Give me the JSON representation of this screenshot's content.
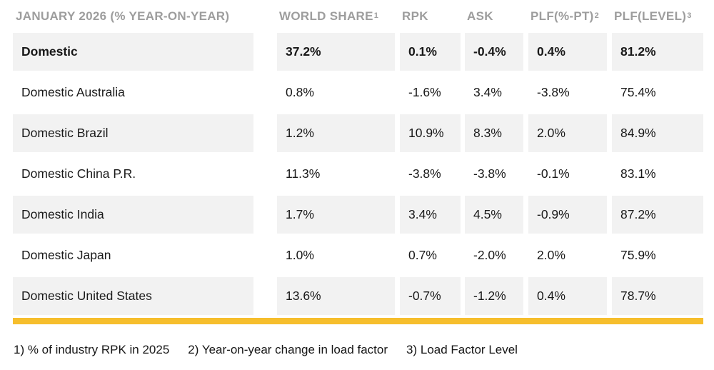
{
  "chart_data": {
    "type": "table",
    "title": "JANUARY 2026 (% YEAR-ON-YEAR)",
    "columns": [
      "WORLD SHARE",
      "RPK",
      "ASK",
      "PLF(%-PT)",
      "PLF(LEVEL)"
    ],
    "column_superscripts": [
      "1",
      "",
      "",
      "2",
      "3"
    ],
    "rows": [
      {
        "label": "Domestic",
        "emphasis": true,
        "values": [
          "37.2%",
          "0.1%",
          "-0.4%",
          "0.4%",
          "81.2%"
        ]
      },
      {
        "label": "Domestic Australia",
        "emphasis": false,
        "values": [
          "0.8%",
          "-1.6%",
          "3.4%",
          "-3.8%",
          "75.4%"
        ]
      },
      {
        "label": "Domestic Brazil",
        "emphasis": false,
        "values": [
          "1.2%",
          "10.9%",
          "8.3%",
          "2.0%",
          "84.9%"
        ]
      },
      {
        "label": "Domestic China P.R.",
        "emphasis": false,
        "values": [
          "11.3%",
          "-3.8%",
          "-3.8%",
          "-0.1%",
          "83.1%"
        ]
      },
      {
        "label": "Domestic India",
        "emphasis": false,
        "values": [
          "1.7%",
          "3.4%",
          "4.5%",
          "-0.9%",
          "87.2%"
        ]
      },
      {
        "label": "Domestic Japan",
        "emphasis": false,
        "values": [
          "1.0%",
          "0.7%",
          "-2.0%",
          "2.0%",
          "75.9%"
        ]
      },
      {
        "label": "Domestic United States",
        "emphasis": false,
        "values": [
          "13.6%",
          "-0.7%",
          "-1.2%",
          "0.4%",
          "78.7%"
        ]
      }
    ],
    "layout": {
      "shaded_row_indices": [
        0,
        2,
        4,
        6
      ],
      "accent_bar_below_table": true
    }
  },
  "footnotes": [
    "1) % of industry RPK in 2025",
    "2) Year-on-year change in load factor",
    "3) Load Factor Level"
  ],
  "colors": {
    "accent_bar": "#f6be2c",
    "row_shade": "#f2f2f2",
    "header_text": "#9d9d9d",
    "body_text": "#1a1a1a"
  }
}
